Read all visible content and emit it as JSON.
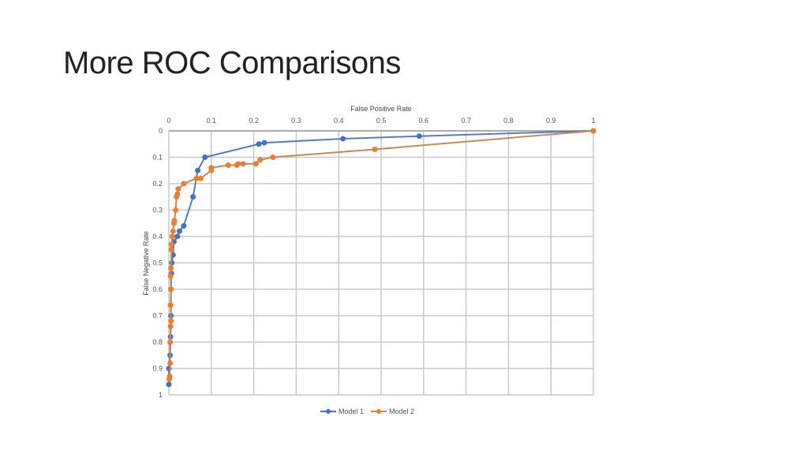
{
  "slide": {
    "title": "More ROC Comparisons"
  },
  "chart_data": {
    "type": "line",
    "xlabel": "False Positive Rate",
    "ylabel": "False Negative Rate",
    "xlim": [
      0,
      1
    ],
    "ylim": [
      0,
      1
    ],
    "y_inverted": true,
    "x_axis_position": "top",
    "grid": true,
    "legend": "bottom",
    "x_ticks": [
      "0",
      "0.1",
      "0.2",
      "0.3",
      "0.4",
      "0.5",
      "0.6",
      "0.7",
      "0.8",
      "0.9",
      "1"
    ],
    "y_ticks": [
      "0",
      "0.1",
      "0.2",
      "0.3",
      "0.4",
      "0.5",
      "0.6",
      "0.7",
      "0.8",
      "0.9",
      "1"
    ],
    "series": [
      {
        "name": "Model 1",
        "color": "#4472c4",
        "x": [
          0,
          0,
          0.003,
          0.004,
          0.005,
          0.005,
          0.006,
          0.007,
          0.01,
          0.012,
          0.02,
          0.025,
          0.035,
          0.057,
          0.068,
          0.085,
          0.212,
          0.225,
          0.41,
          0.59,
          1
        ],
        "y": [
          0.96,
          0.9,
          0.85,
          0.78,
          0.7,
          0.6,
          0.54,
          0.5,
          0.47,
          0.42,
          0.4,
          0.38,
          0.36,
          0.25,
          0.15,
          0.1,
          0.05,
          0.045,
          0.03,
          0.02,
          0
        ]
      },
      {
        "name": "Model 2",
        "color": "#ed7d31",
        "x": [
          0.001,
          0.002,
          0.003,
          0.003,
          0.004,
          0.005,
          0.004,
          0.005,
          0.004,
          0.005,
          0.006,
          0.006,
          0.008,
          0.01,
          0.012,
          0.013,
          0.016,
          0.018,
          0.02,
          0.022,
          0.035,
          0.065,
          0.075,
          0.1,
          0.1,
          0.14,
          0.16,
          0.163,
          0.175,
          0.205,
          0.215,
          0.245,
          0.485,
          1
        ],
        "y": [
          0.94,
          0.93,
          0.88,
          0.8,
          0.74,
          0.72,
          0.66,
          0.6,
          0.55,
          0.52,
          0.45,
          0.43,
          0.4,
          0.38,
          0.35,
          0.34,
          0.3,
          0.25,
          0.24,
          0.22,
          0.2,
          0.18,
          0.18,
          0.15,
          0.14,
          0.13,
          0.13,
          0.125,
          0.125,
          0.125,
          0.11,
          0.1,
          0.07,
          0
        ]
      }
    ]
  }
}
